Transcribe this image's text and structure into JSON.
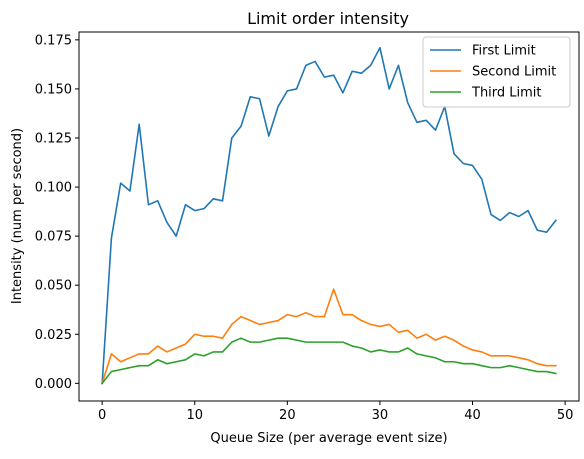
{
  "chart_data": {
    "type": "line",
    "title": "Limit order intensity",
    "xlabel": "Queue Size (per average event size)",
    "ylabel": "Intensity (num per second)",
    "xlim": [
      -2.5,
      51.5
    ],
    "ylim": [
      -0.009,
      0.179
    ],
    "xticks": [
      0,
      10,
      20,
      30,
      40,
      50
    ],
    "yticks": [
      0.0,
      0.025,
      0.05,
      0.075,
      0.1,
      0.125,
      0.15,
      0.175
    ],
    "xtick_labels": [
      "0",
      "10",
      "20",
      "30",
      "40",
      "50"
    ],
    "ytick_labels": [
      "0.000",
      "0.025",
      "0.050",
      "0.075",
      "0.100",
      "0.125",
      "0.150",
      "0.175"
    ],
    "grid": false,
    "legend_position": "top-right",
    "x": [
      0,
      1,
      2,
      3,
      4,
      5,
      6,
      7,
      8,
      9,
      10,
      11,
      12,
      13,
      14,
      15,
      16,
      17,
      18,
      19,
      20,
      21,
      22,
      23,
      24,
      25,
      26,
      27,
      28,
      29,
      30,
      31,
      32,
      33,
      34,
      35,
      36,
      37,
      38,
      39,
      40,
      41,
      42,
      43,
      44,
      45,
      46,
      47,
      48,
      49
    ],
    "series": [
      {
        "name": "First Limit",
        "color": "#1f77b4",
        "values": [
          0.0,
          0.074,
          0.102,
          0.098,
          0.132,
          0.091,
          0.093,
          0.082,
          0.075,
          0.091,
          0.088,
          0.089,
          0.094,
          0.093,
          0.125,
          0.131,
          0.146,
          0.145,
          0.126,
          0.141,
          0.149,
          0.15,
          0.162,
          0.164,
          0.156,
          0.157,
          0.148,
          0.159,
          0.158,
          0.162,
          0.171,
          0.15,
          0.162,
          0.143,
          0.133,
          0.134,
          0.129,
          0.141,
          0.117,
          0.112,
          0.111,
          0.104,
          0.086,
          0.083,
          0.087,
          0.085,
          0.088,
          0.078,
          0.077,
          0.083
        ]
      },
      {
        "name": "Second Limit",
        "color": "#ff7f0e",
        "values": [
          0.0,
          0.015,
          0.011,
          0.013,
          0.015,
          0.015,
          0.019,
          0.016,
          0.018,
          0.02,
          0.025,
          0.024,
          0.024,
          0.023,
          0.03,
          0.034,
          0.032,
          0.03,
          0.031,
          0.032,
          0.035,
          0.034,
          0.036,
          0.034,
          0.034,
          0.048,
          0.035,
          0.035,
          0.032,
          0.03,
          0.029,
          0.03,
          0.026,
          0.027,
          0.023,
          0.025,
          0.022,
          0.024,
          0.022,
          0.019,
          0.017,
          0.016,
          0.014,
          0.014,
          0.014,
          0.013,
          0.012,
          0.01,
          0.009,
          0.009
        ]
      },
      {
        "name": "Third Limit",
        "color": "#2ca02c",
        "values": [
          0.0,
          0.006,
          0.007,
          0.008,
          0.009,
          0.009,
          0.012,
          0.01,
          0.011,
          0.012,
          0.015,
          0.014,
          0.016,
          0.016,
          0.021,
          0.023,
          0.021,
          0.021,
          0.022,
          0.023,
          0.023,
          0.022,
          0.021,
          0.021,
          0.021,
          0.021,
          0.021,
          0.019,
          0.018,
          0.016,
          0.017,
          0.016,
          0.016,
          0.018,
          0.015,
          0.014,
          0.013,
          0.011,
          0.011,
          0.01,
          0.01,
          0.009,
          0.008,
          0.008,
          0.009,
          0.008,
          0.007,
          0.006,
          0.006,
          0.005
        ]
      }
    ]
  }
}
